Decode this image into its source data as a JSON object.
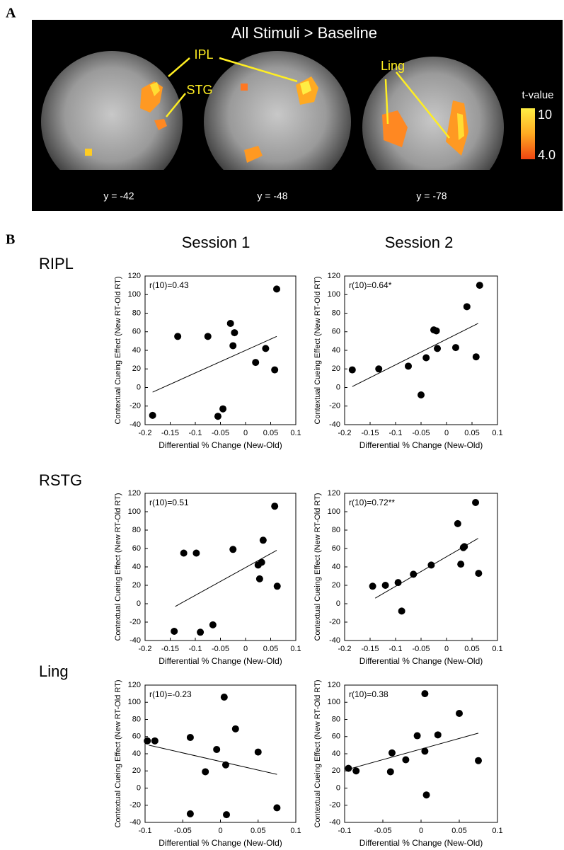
{
  "panel_a": {
    "label": "A",
    "title": "All Stimuli > Baseline",
    "regions": [
      "IPL",
      "STG",
      "Ling"
    ],
    "slices": [
      "y = -42",
      "y = -48",
      "y = -78"
    ],
    "colorbar": {
      "title": "t-value",
      "max_label": "10",
      "min_label": "4.0"
    }
  },
  "panel_b": {
    "label": "B",
    "sessions": [
      "Session 1",
      "Session 2"
    ],
    "rows": [
      "RIPL",
      "RSTG",
      "Ling"
    ]
  },
  "chart_data": [
    {
      "type": "scatter",
      "annotation": "r(10)=0.43",
      "xlabel": "Differential % Change (New-Old)",
      "ylabel": "Contextual Cueing Effect (New RT-Old RT)",
      "x": [
        -0.185,
        -0.135,
        -0.075,
        -0.03,
        -0.022,
        -0.025,
        -0.055,
        -0.045,
        0.02,
        0.04,
        0.058,
        0.062
      ],
      "values": [
        -30,
        55,
        55,
        69,
        59,
        45,
        -31,
        -23,
        27,
        42,
        19,
        106
      ],
      "color": "#000000",
      "fit_line": {
        "x": [
          -0.185,
          0.062
        ],
        "y": [
          -5,
          55
        ]
      },
      "xlim": [
        -0.2,
        0.1
      ],
      "xticks": [
        -0.2,
        -0.15,
        -0.1,
        -0.05,
        0,
        0.05,
        0.1
      ],
      "ylim": [
        -40,
        120
      ],
      "yticks": [
        -40,
        -20,
        0,
        20,
        40,
        60,
        80,
        100,
        120
      ]
    },
    {
      "type": "scatter",
      "annotation": "r(10)=0.64*",
      "xlabel": "Differential % Change (New-Old)",
      "ylabel": "Contextual Cueing Effect (New RT-Old RT)",
      "x": [
        -0.185,
        -0.133,
        -0.075,
        -0.05,
        -0.04,
        -0.025,
        -0.02,
        -0.018,
        0.018,
        0.04,
        0.058,
        0.065
      ],
      "values": [
        19,
        20,
        23,
        -8,
        32,
        62,
        61,
        42,
        43,
        87,
        33,
        110
      ],
      "color": "#000000",
      "fit_line": {
        "x": [
          -0.185,
          0.062
        ],
        "y": [
          1,
          69
        ]
      },
      "xlim": [
        -0.2,
        0.1
      ],
      "xticks": [
        -0.2,
        -0.15,
        -0.1,
        -0.05,
        0,
        0.05,
        0.1
      ],
      "ylim": [
        -40,
        120
      ],
      "yticks": [
        -40,
        -20,
        0,
        20,
        40,
        60,
        80,
        100,
        120
      ]
    },
    {
      "type": "scatter",
      "annotation": "r(10)=0.51",
      "xlabel": "Differential % Change (New-Old)",
      "ylabel": "Contextual Cueing Effect (New RT-Old RT)",
      "x": [
        -0.142,
        -0.123,
        -0.098,
        -0.09,
        -0.065,
        -0.025,
        0.025,
        0.028,
        0.032,
        0.035,
        0.058,
        0.063
      ],
      "values": [
        -30,
        55,
        55,
        -31,
        -23,
        59,
        42,
        27,
        45,
        69,
        106,
        19
      ],
      "color": "#000000",
      "fit_line": {
        "x": [
          -0.14,
          0.062
        ],
        "y": [
          -3,
          58
        ]
      },
      "xlim": [
        -0.2,
        0.1
      ],
      "xticks": [
        -0.2,
        -0.15,
        -0.1,
        -0.05,
        0,
        0.05,
        0.1
      ],
      "ylim": [
        -40,
        120
      ],
      "yticks": [
        -40,
        -20,
        0,
        20,
        40,
        60,
        80,
        100,
        120
      ]
    },
    {
      "type": "scatter",
      "annotation": "r(10)=0.72**",
      "xlabel": "Differential % Change (New-Old)",
      "ylabel": "Contextual Cueing Effect (New RT-Old RT)",
      "x": [
        -0.145,
        -0.12,
        -0.095,
        -0.088,
        -0.065,
        -0.03,
        0.022,
        0.028,
        0.033,
        0.035,
        0.057,
        0.063
      ],
      "values": [
        19,
        20,
        23,
        -8,
        32,
        42,
        87,
        43,
        61,
        62,
        110,
        33
      ],
      "color": "#000000",
      "fit_line": {
        "x": [
          -0.14,
          0.062
        ],
        "y": [
          6,
          71
        ]
      },
      "xlim": [
        -0.2,
        0.1
      ],
      "xticks": [
        -0.2,
        -0.15,
        -0.1,
        -0.05,
        0,
        0.05,
        0.1
      ],
      "ylim": [
        -40,
        120
      ],
      "yticks": [
        -40,
        -20,
        0,
        20,
        40,
        60,
        80,
        100,
        120
      ]
    },
    {
      "type": "scatter",
      "annotation": "r(10)=-0.23",
      "xlabel": "Differential % Change (New-Old)",
      "ylabel": "Contextual Cueing Effect (New RT-Old RT)",
      "x": [
        -0.097,
        -0.087,
        -0.04,
        -0.04,
        -0.02,
        -0.005,
        0.005,
        0.007,
        0.008,
        0.02,
        0.05,
        0.075
      ],
      "values": [
        55,
        55,
        59,
        -30,
        19,
        45,
        106,
        27,
        -31,
        69,
        42,
        -23
      ],
      "color": "#000000",
      "fit_line": {
        "x": [
          -0.095,
          0.075
        ],
        "y": [
          50,
          16
        ]
      },
      "xlim": [
        -0.1,
        0.1
      ],
      "xticks": [
        -0.1,
        -0.05,
        0,
        0.05,
        0.1
      ],
      "ylim": [
        -40,
        120
      ],
      "yticks": [
        -40,
        -20,
        0,
        20,
        40,
        60,
        80,
        100,
        120
      ]
    },
    {
      "type": "scatter",
      "annotation": "r(10)=0.38",
      "xlabel": "Differential % Change (New-Old)",
      "ylabel": "Contextual Cueing Effect (New RT-Old RT)",
      "x": [
        -0.095,
        -0.085,
        -0.04,
        -0.038,
        -0.02,
        -0.005,
        0.005,
        0.005,
        0.007,
        0.022,
        0.05,
        0.075
      ],
      "values": [
        23,
        20,
        19,
        41,
        33,
        61,
        110,
        43,
        -8,
        62,
        87,
        32
      ],
      "color": "#000000",
      "fit_line": {
        "x": [
          -0.095,
          0.075
        ],
        "y": [
          22,
          64
        ]
      },
      "xlim": [
        -0.1,
        0.1
      ],
      "xticks": [
        -0.1,
        -0.05,
        0,
        0.05,
        0.1
      ],
      "ylim": [
        -40,
        120
      ],
      "yticks": [
        -40,
        -20,
        0,
        20,
        40,
        60,
        80,
        100,
        120
      ]
    }
  ]
}
